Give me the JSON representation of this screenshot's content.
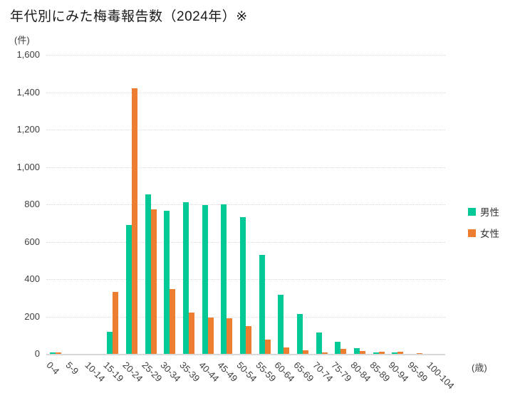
{
  "chart_data": {
    "type": "bar",
    "title": "年代別にみた梅毒報告数（2024年）※",
    "ylabel": "(件)",
    "xlabel": "(歳)",
    "ylim": [
      0,
      1600
    ],
    "ytick_interval": 200,
    "yticks": [
      "0",
      "200",
      "400",
      "600",
      "800",
      "1,000",
      "1,200",
      "1,400",
      "1,600"
    ],
    "grid": "horizontal-dotted",
    "legend_position": "right",
    "categories": [
      "0-4",
      "5-9",
      "10-14",
      "15-19",
      "20-24",
      "25-29",
      "30-34",
      "35-39",
      "40-44",
      "45-49",
      "50-54",
      "55-59",
      "60-64",
      "65-69",
      "70-74",
      "75-79",
      "80-84",
      "85-89",
      "90-94",
      "95-99",
      "100-104"
    ],
    "series": [
      {
        "name": "男性",
        "color": "#00C896",
        "values": [
          8,
          0,
          0,
          120,
          690,
          855,
          765,
          810,
          795,
          800,
          730,
          530,
          315,
          215,
          115,
          65,
          30,
          7,
          6,
          0,
          0
        ]
      },
      {
        "name": "女性",
        "color": "#ED7D31",
        "values": [
          7,
          0,
          0,
          330,
          1420,
          775,
          345,
          220,
          195,
          190,
          150,
          75,
          35,
          20,
          9,
          26,
          15,
          10,
          13,
          5,
          0
        ]
      }
    ]
  }
}
